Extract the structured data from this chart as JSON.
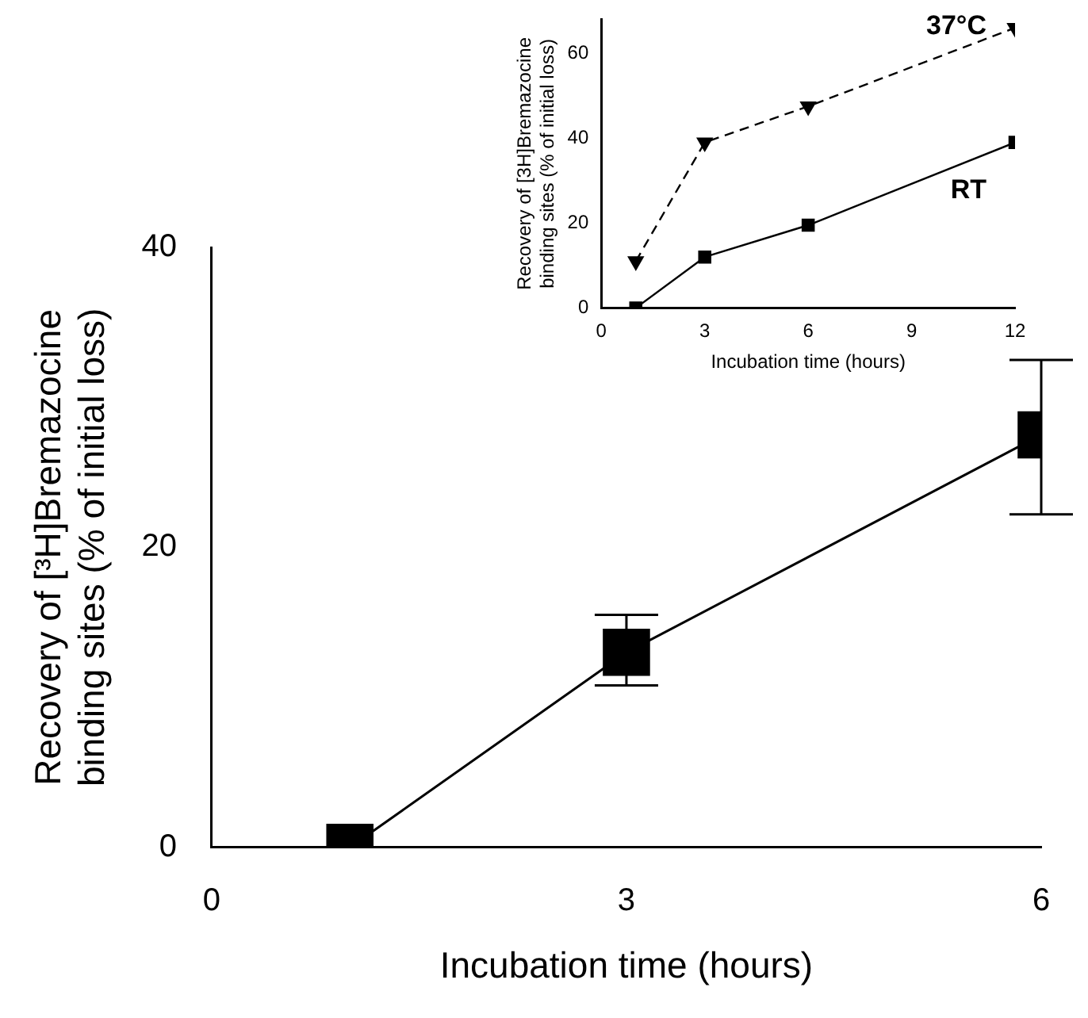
{
  "chart_data": [
    {
      "type": "line",
      "xlabel": "Incubation time (hours)",
      "ylabel": "Recovery of [³H]Bremazocine binding sites (% of initial loss)",
      "x": [
        1,
        3,
        6
      ],
      "values": [
        0,
        13,
        27.5
      ],
      "errors": [
        null,
        [
          10.8,
          15.5
        ],
        [
          22.2,
          32.5
        ]
      ],
      "color": "#000000",
      "marker": "square",
      "line_style": "solid",
      "xlim": [
        0,
        6
      ],
      "xticks": [
        0,
        3,
        6
      ],
      "ylim": [
        0,
        40
      ],
      "yticks": [
        0,
        20,
        40
      ],
      "grid": false,
      "legend": false
    },
    {
      "type": "line",
      "xlabel": "Incubation time (hours)",
      "ylabel": "Recovery of [3H]Bremazocine binding sites (% of initial loss)",
      "x": [
        1,
        3,
        6,
        12
      ],
      "series": [
        {
          "name": "37°C",
          "color": "#000000",
          "values": [
            11,
            39,
            47.5,
            66
          ],
          "marker": "triangle",
          "line_style": "dashed"
        },
        {
          "name": "RT",
          "color": "#000000",
          "values": [
            0,
            12,
            19.5,
            39
          ],
          "marker": "square",
          "line_style": "solid"
        }
      ],
      "xlim": [
        0,
        12
      ],
      "xticks": [
        0,
        3,
        6,
        9,
        12
      ],
      "ylim": [
        0,
        68
      ],
      "yticks": [
        0,
        20,
        40,
        60
      ],
      "grid": false,
      "legend": false
    }
  ]
}
